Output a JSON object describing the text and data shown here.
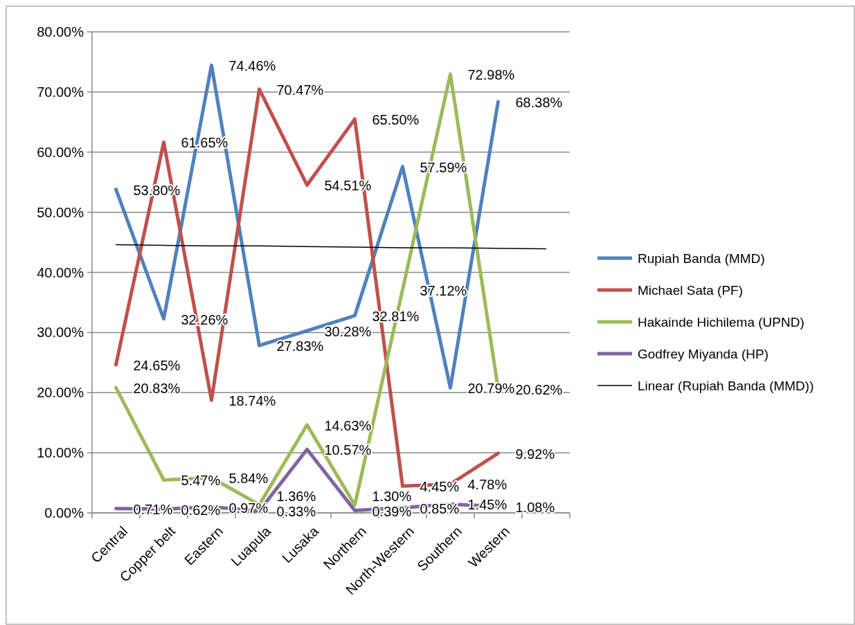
{
  "chart_data": {
    "type": "line",
    "categories": [
      "Central",
      "Copper belt",
      "Eastern",
      "Luapula",
      "Lusaka",
      "Northern",
      "North-Western",
      "Southern",
      "Western",
      null
    ],
    "ylim": [
      0,
      80
    ],
    "yticks": [
      {
        "value": 0,
        "label": "0.00%"
      },
      {
        "value": 10,
        "label": "10.00%"
      },
      {
        "value": 20,
        "label": "20.00%"
      },
      {
        "value": 30,
        "label": "30.00%"
      },
      {
        "value": 40,
        "label": "40.00%"
      },
      {
        "value": 50,
        "label": "50.00%"
      },
      {
        "value": 60,
        "label": "60.00%"
      },
      {
        "value": 70,
        "label": "70.00%"
      },
      {
        "value": 80,
        "label": "80.00%"
      }
    ],
    "grid": "y",
    "legend": "right",
    "marker": "none",
    "line_style": "solid",
    "series": [
      {
        "name": "Rupiah Banda (MMD)",
        "color": "#4f81bd",
        "values": [
          53.8,
          32.26,
          74.46,
          27.83,
          30.28,
          32.81,
          57.59,
          20.79,
          68.38,
          null
        ],
        "value_labels": [
          "53.80%",
          "32.26%",
          "74.46%",
          "27.83%",
          "30.28%",
          "32.81%",
          "57.59%",
          "20.79%",
          "68.38%",
          null
        ]
      },
      {
        "name": "Michael Sata (PF)",
        "color": "#c0504d",
        "values": [
          24.65,
          61.65,
          18.74,
          70.47,
          54.51,
          65.5,
          4.45,
          4.78,
          9.92,
          null
        ],
        "value_labels": [
          "24.65%",
          "61.65%",
          "18.74%",
          "70.47%",
          "54.51%",
          "65.50%",
          "4.45%",
          "4.78%",
          "9.92%",
          null
        ]
      },
      {
        "name": "Hakainde Hichilema (UPND)",
        "color": "#9bbb59",
        "values": [
          20.83,
          5.47,
          5.84,
          1.36,
          14.63,
          1.3,
          37.12,
          72.98,
          20.62,
          null
        ],
        "value_labels": [
          "20.83%",
          "5.47%",
          "5.84%",
          "1.36%",
          "14.63%",
          "1.30%",
          "37.12%",
          "72.98%",
          "20.62%",
          null
        ]
      },
      {
        "name": "Godfrey Miyanda (HP)",
        "color": "#8064a2",
        "values": [
          0.71,
          0.62,
          0.97,
          0.33,
          10.57,
          0.39,
          0.85,
          1.45,
          1.08,
          null
        ],
        "value_labels": [
          "0.71%",
          "0.62%",
          "0.97%",
          "0.33%",
          "10.57%",
          "0.39%",
          "0.85%",
          "1.45%",
          "1.08%",
          null
        ]
      },
      {
        "name": "Linear (Rupiah Banda (MMD))",
        "color": "#000000",
        "values": [
          44.6,
          44.5,
          44.4,
          44.4,
          44.3,
          44.2,
          44.1,
          44.1,
          44.0,
          43.9
        ]
      }
    ]
  }
}
